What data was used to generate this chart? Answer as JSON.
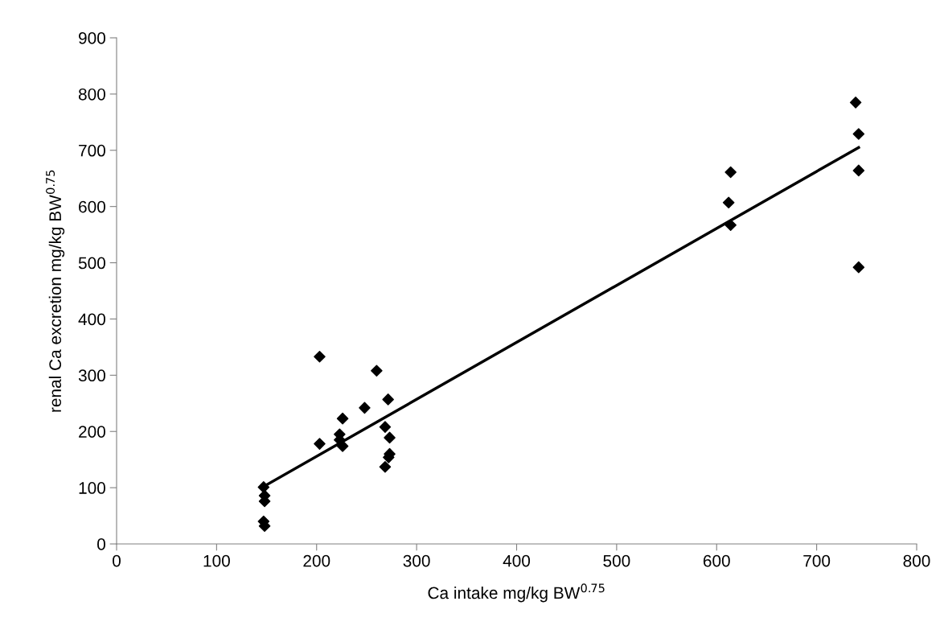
{
  "chart_data": {
    "type": "scatter",
    "xlabel": "Ca intake mg/kg BW$^{0.75}$",
    "ylabel": "renal Ca excretion mg/kg BW$^{0.75}$",
    "xlim": [
      0,
      800
    ],
    "ylim": [
      0,
      900
    ],
    "xticks": [
      0,
      100,
      200,
      300,
      400,
      500,
      600,
      700,
      800
    ],
    "yticks": [
      0,
      100,
      200,
      300,
      400,
      500,
      600,
      700,
      800,
      900
    ],
    "grid": false,
    "legend": false,
    "series": [
      {
        "marker": "diamond",
        "color": "#000000",
        "x": [
          147,
          148,
          148,
          147,
          148,
          203,
          203,
          223,
          223,
          226,
          226,
          248,
          260,
          271.5,
          268.5,
          273,
          273,
          272,
          268.5,
          612,
          614,
          614,
          739,
          742,
          742,
          742
        ],
        "values": [
          101,
          86,
          76,
          40,
          32,
          333,
          178,
          195,
          185,
          223,
          174,
          242,
          308,
          257,
          208,
          189,
          160,
          154,
          137,
          607,
          661,
          567,
          785,
          729,
          664,
          492
        ]
      },
      {
        "type": "line",
        "marker": "none",
        "color": "#000000",
        "x": [
          147,
          742
        ],
        "values": [
          102,
          705
        ]
      }
    ]
  }
}
